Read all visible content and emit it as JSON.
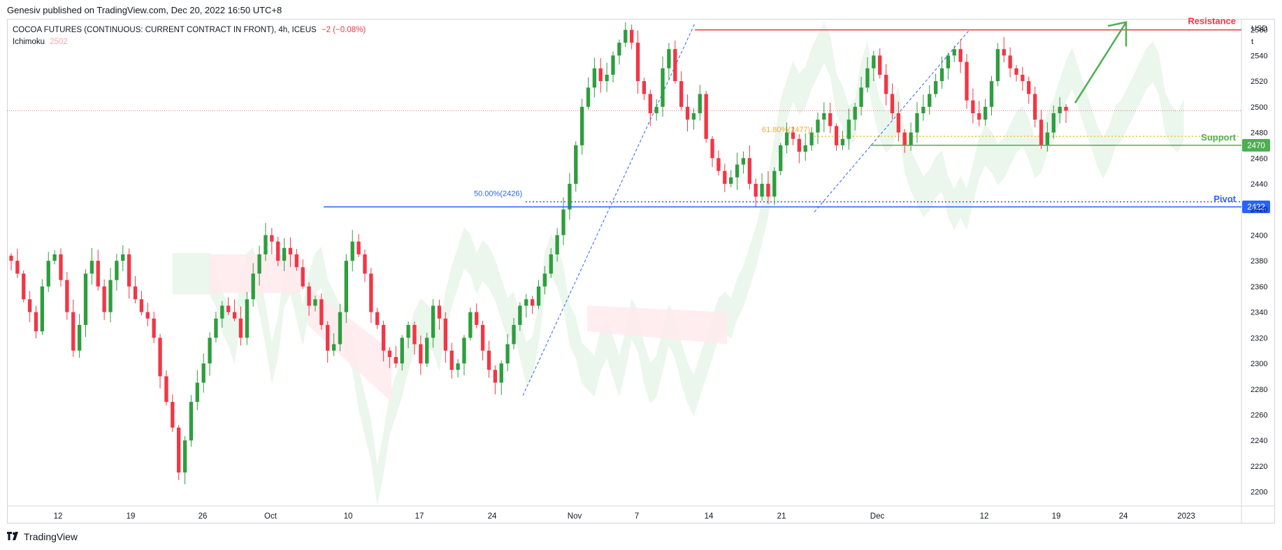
{
  "header": {
    "publisher_line": "Genesiv published on TradingView.com, Dec 20, 2022 16:50 UTC+8"
  },
  "legend": {
    "symbol": "COCOA FUTURES (CONTINUOUS: CURRENT CONTRACT IN FRONT), 4h, ICEUS",
    "change": "−2 (−0.08%)",
    "indicator": "Ichimoku",
    "indicator_value": "2502"
  },
  "footer": {
    "brand": "TradingView",
    "logo_icon": "tradingview-logo-icon"
  },
  "colors": {
    "up": "#26a69a",
    "up_candle": "#2e9e3e",
    "down_candle": "#f23645",
    "resistance": "#f23645",
    "support": "#4caf50",
    "pivot": "#2962ff",
    "fib": "#fbc02d",
    "cloud_bull": "#e8f5e9",
    "cloud_bear": "#ffebee"
  },
  "chart_data": {
    "type": "candlestick",
    "currency_label": "USD",
    "currency_label_2": "t",
    "y_ticks": [
      2200,
      2220,
      2240,
      2260,
      2280,
      2300,
      2320,
      2340,
      2360,
      2380,
      2400,
      2420,
      2440,
      2460,
      2480,
      2500,
      2520,
      2540,
      2560
    ],
    "y_tick_labels": [
      "2200",
      "2220",
      "2240",
      "2260",
      "2280",
      "2300",
      "2320",
      "2340",
      "2360",
      "2380",
      "2400",
      "2420",
      "2440",
      "2460",
      "2480",
      "2500",
      "2520",
      "2540",
      "2560"
    ],
    "ylim": [
      2190,
      2568
    ],
    "x_tick_labels": [
      "12",
      "19",
      "26",
      "Oct",
      "10",
      "17",
      "24",
      "Nov",
      "7",
      "14",
      "21",
      "Dec",
      "12",
      "19",
      "24",
      "2023"
    ],
    "levels": {
      "resistance": {
        "label": "Resistance",
        "value": 2560
      },
      "support": {
        "label": "Support",
        "value": 2470,
        "badge": "2470"
      },
      "pivot": {
        "label": "Pivot",
        "value": 2422,
        "badge": "2422"
      },
      "last_price": 2497
    },
    "fibonacci": [
      {
        "label": "50.00%(2426)",
        "value": 2426
      },
      {
        "label": "61.80%(2477)",
        "value": 2477
      }
    ],
    "close_series": [
      2380,
      2370,
      2350,
      2340,
      2325,
      2360,
      2380,
      2385,
      2365,
      2340,
      2310,
      2330,
      2370,
      2380,
      2360,
      2340,
      2365,
      2380,
      2385,
      2360,
      2350,
      2340,
      2335,
      2320,
      2290,
      2270,
      2250,
      2215,
      2240,
      2270,
      2285,
      2300,
      2320,
      2335,
      2345,
      2340,
      2335,
      2320,
      2350,
      2370,
      2385,
      2400,
      2395,
      2380,
      2390,
      2385,
      2375,
      2360,
      2345,
      2350,
      2330,
      2310,
      2315,
      2340,
      2380,
      2395,
      2385,
      2370,
      2340,
      2330,
      2310,
      2305,
      2300,
      2320,
      2330,
      2315,
      2300,
      2320,
      2345,
      2335,
      2310,
      2295,
      2300,
      2320,
      2340,
      2330,
      2310,
      2295,
      2285,
      2300,
      2315,
      2330,
      2345,
      2350,
      2345,
      2360,
      2370,
      2385,
      2400,
      2420,
      2440,
      2470,
      2500,
      2515,
      2530,
      2520,
      2525,
      2540,
      2550,
      2560,
      2550,
      2520,
      2510,
      2495,
      2500,
      2530,
      2545,
      2520,
      2500,
      2490,
      2495,
      2510,
      2475,
      2460,
      2450,
      2440,
      2445,
      2455,
      2460,
      2440,
      2430,
      2440,
      2430,
      2450,
      2470,
      2480,
      2475,
      2465,
      2470,
      2480,
      2490,
      2495,
      2485,
      2470,
      2475,
      2490,
      2500,
      2515,
      2530,
      2540,
      2525,
      2510,
      2495,
      2480,
      2470,
      2480,
      2495,
      2500,
      2510,
      2520,
      2530,
      2540,
      2545,
      2535,
      2505,
      2495,
      2490,
      2500,
      2520,
      2545,
      2540,
      2530,
      2525,
      2520,
      2510,
      2490,
      2470,
      2480,
      2495,
      2500,
      2497
    ],
    "annotations": [
      "Resistance",
      "Support",
      "Pivot"
    ]
  }
}
